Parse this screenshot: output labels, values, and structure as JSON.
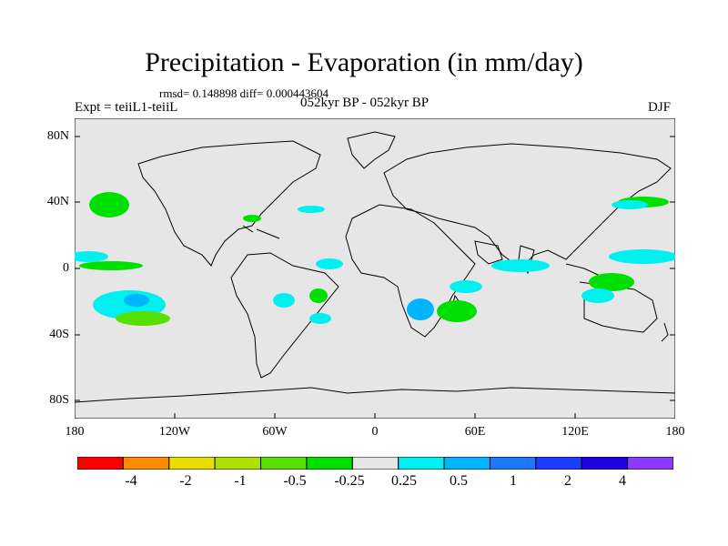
{
  "title": "Precipitation - Evaporation (in mm/day)",
  "stats": "rmsd= 0.148898 diff= 0.000443604",
  "experiment": "Expt = teiiL1-teiiL",
  "period": "052kyr BP - 052kyr BP",
  "season": "DJF",
  "map": {
    "land_fill": "#e6e6e6",
    "coastline_color": "#000000",
    "y_ticks": [
      "80N",
      "40N",
      "0",
      "40S",
      "80S"
    ],
    "x_ticks": [
      "180",
      "120W",
      "60W",
      "0",
      "60E",
      "120E",
      "180"
    ]
  },
  "colorbar": {
    "colors": [
      "#ff0000",
      "#ff8c00",
      "#e8dc00",
      "#b0e000",
      "#58e000",
      "#00e000",
      "#e6e6e6",
      "#00f0f0",
      "#00b4ff",
      "#1e78ff",
      "#1e3cff",
      "#1e00e0",
      "#8c3cff"
    ],
    "labels": [
      "-4",
      "-2",
      "-1",
      "-0.5",
      "-0.25",
      "0.25",
      "0.5",
      "1",
      "2",
      "4"
    ],
    "colors_meaning": "red=most negative, purple=most positive"
  }
}
